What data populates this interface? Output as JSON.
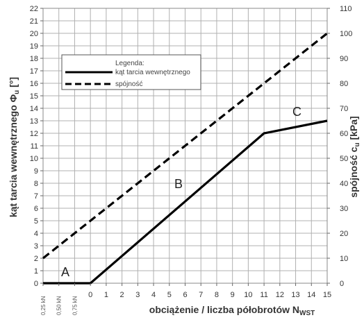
{
  "chart_data": {
    "type": "line",
    "xlabel": "obciążenie / liczba półobrotów N",
    "xlabel_sub": "WST",
    "ylabel": "kąt tarcia wewnętrznego Φ",
    "ylabel_sub": "u",
    "ylabel_unit": " [°]",
    "y2label": "spójność c",
    "y2label_sub": "u",
    "y2label_unit": " [kPa]",
    "x_ticks": [
      "0",
      "1",
      "2",
      "3",
      "4",
      "5",
      "6",
      "7",
      "8",
      "9",
      "10",
      "11",
      "12",
      "13",
      "14",
      "15"
    ],
    "x_load_ticks": [
      "0,25 kN",
      "0,50 kN",
      "0,75 kN"
    ],
    "y_left_ticks": [
      "0",
      "1",
      "2",
      "3",
      "4",
      "5",
      "6",
      "7",
      "8",
      "9",
      "10",
      "11",
      "12",
      "13",
      "14",
      "15",
      "16",
      "17",
      "18",
      "19",
      "20",
      "21",
      "22"
    ],
    "y_right_ticks": [
      "0",
      "10",
      "20",
      "30",
      "40",
      "50",
      "60",
      "70",
      "80",
      "90",
      "100",
      "110"
    ],
    "ylim": [
      0,
      22
    ],
    "y2lim": [
      0,
      110
    ],
    "grid": true,
    "legend_title": "Legenda:",
    "legend_position": "top-left",
    "series": [
      {
        "name": "kąt tarcia wewnętrznego",
        "axis": "left",
        "style": "solid",
        "x": [
          "0,25 kN",
          "0,75 kN",
          "0",
          "11",
          "15"
        ],
        "y": [
          0,
          0,
          0,
          12,
          13
        ]
      },
      {
        "name": "spójność",
        "axis": "right",
        "style": "dashed",
        "x": [
          "0,25 kN",
          "15"
        ],
        "y": [
          10,
          100
        ]
      }
    ],
    "annotations": [
      "A",
      "B",
      "C"
    ],
    "colors": {
      "line": "#000000",
      "grid": "#b0b0b0",
      "text": "#333333"
    }
  }
}
